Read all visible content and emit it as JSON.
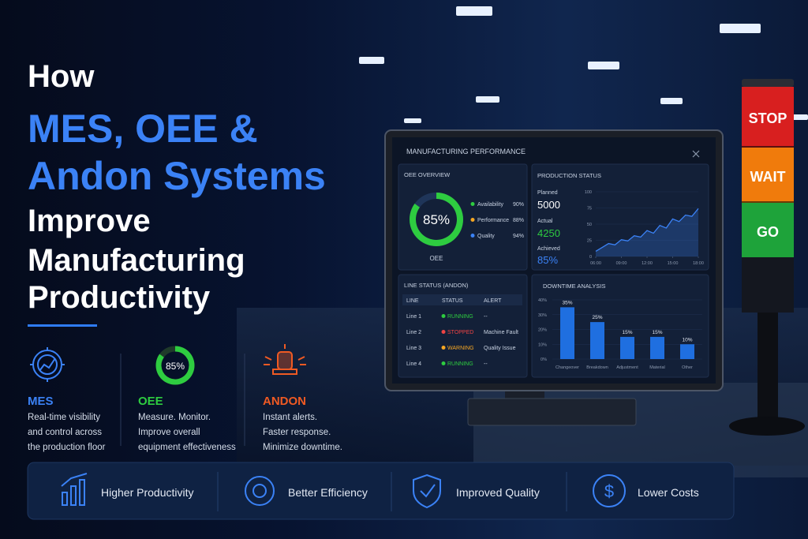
{
  "headline": {
    "lines": [
      "How",
      "MES, OEE &",
      "Andon Systems",
      "Improve",
      "Manufacturing",
      "Productivity"
    ]
  },
  "pillars": [
    {
      "name": "MES",
      "description": [
        "Real-time visibility",
        "and control across",
        "the production floor"
      ]
    },
    {
      "name": "OEE",
      "gauge": {
        "value": 85,
        "label": "85%"
      },
      "description": [
        "Measure. Monitor.",
        "Improve overall",
        "equipment effectiveness"
      ]
    },
    {
      "name": "ANDON",
      "description": [
        "Instant alerts.",
        "Faster response.",
        "Minimize downtime."
      ]
    }
  ],
  "benefits": [
    "Higher Productivity",
    "Better Efficiency",
    "Improved Quality",
    "Lower Costs"
  ],
  "andon_tower": [
    "STOP",
    "WAIT",
    "GO"
  ],
  "dashboard": {
    "title": "MANUFACTURING PERFORMANCE",
    "oee_overview": {
      "title": "OEE OVERVIEW",
      "value": 85,
      "label": "85%",
      "caption": "OEE",
      "metrics": [
        {
          "name": "Availability",
          "value": 90,
          "label": "90%",
          "color": "#2ecc40"
        },
        {
          "name": "Performance",
          "value": 88,
          "label": "88%",
          "color": "#f5a623"
        },
        {
          "name": "Quality",
          "value": 94,
          "label": "94%",
          "color": "#3b82f6"
        }
      ]
    },
    "production_status": {
      "title": "PRODUCTION STATUS",
      "planned_label": "Planned",
      "planned": 5000,
      "actual_label": "Actual",
      "actual": 4250,
      "achieved_label": "Achieved",
      "achieved": {
        "value": 85,
        "label": "85%"
      },
      "chart": {
        "type": "line",
        "x": [
          6,
          6.75,
          7.5,
          8.25,
          9,
          9.75,
          10.5,
          11.25,
          12,
          12.75,
          13.5,
          14.25,
          15,
          15.75,
          16.5,
          17.25,
          18
        ],
        "values": [
          8,
          14,
          20,
          18,
          26,
          24,
          32,
          30,
          40,
          36,
          48,
          44,
          58,
          54,
          64,
          62,
          74
        ],
        "xlim": [
          6,
          18
        ],
        "xticks": [
          {
            "value": 6,
            "label": "06:00"
          },
          {
            "value": 9,
            "label": "09:00"
          },
          {
            "value": 12,
            "label": "12:00"
          },
          {
            "value": 15,
            "label": "15:00"
          },
          {
            "value": 18,
            "label": "18:00"
          }
        ],
        "ylim": [
          0,
          100
        ],
        "yticks": [
          0,
          25,
          50,
          75,
          100
        ],
        "color": "#3b82f6"
      }
    },
    "line_status": {
      "title": "LINE STATUS (ANDON)",
      "header": [
        "LINE",
        "STATUS",
        "ALERT"
      ],
      "rows": [
        {
          "line": "Line 1",
          "status": "RUNNING",
          "status_color": "#2ecc40",
          "alert": "--"
        },
        {
          "line": "Line 2",
          "status": "STOPPED",
          "status_color": "#ef4444",
          "alert": "Machine Fault"
        },
        {
          "line": "Line 3",
          "status": "WARNING",
          "status_color": "#f5a623",
          "alert": "Quality Issue"
        },
        {
          "line": "Line 4",
          "status": "RUNNING",
          "status_color": "#2ecc40",
          "alert": "--"
        }
      ]
    },
    "downtime_analysis": {
      "title": "DOWNTIME ANALYSIS",
      "chart": {
        "type": "bar",
        "categories": [
          "Changeover",
          "Breakdown",
          "Adjustment",
          "Material",
          "Other"
        ],
        "values": [
          35,
          25,
          15,
          15,
          10
        ],
        "value_labels": [
          "35%",
          "25%",
          "15%",
          "15%",
          "10%"
        ],
        "ylim": [
          0,
          40
        ],
        "yticks": [
          {
            "value": 0,
            "label": "0%"
          },
          {
            "value": 10,
            "label": "10%"
          },
          {
            "value": 20,
            "label": "20%"
          },
          {
            "value": 30,
            "label": "30%"
          },
          {
            "value": 40,
            "label": "40%"
          }
        ],
        "color": "#1f6fe0"
      }
    }
  }
}
